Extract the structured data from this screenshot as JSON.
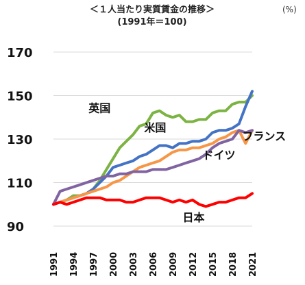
{
  "chart_data": {
    "type": "line",
    "title": "＜１人当たり実質賃金の推移＞",
    "subtitle": "(1991年＝100)",
    "unit": "(%)",
    "ylim": [
      90,
      170
    ],
    "yticks": [
      90,
      110,
      130,
      150,
      170
    ],
    "xlim": [
      1991,
      2021
    ],
    "xticks": [
      1991,
      1994,
      1997,
      2000,
      2003,
      2006,
      2009,
      2012,
      2015,
      2018,
      2021
    ],
    "grid": true,
    "legend": "labels on lines",
    "x": [
      1991,
      1992,
      1993,
      1994,
      1995,
      1996,
      1997,
      1998,
      1999,
      2000,
      2001,
      2002,
      2003,
      2004,
      2005,
      2006,
      2007,
      2008,
      2009,
      2010,
      2011,
      2012,
      2013,
      2014,
      2015,
      2016,
      2017,
      2018,
      2019,
      2020,
      2021
    ],
    "series": [
      {
        "name": "英国",
        "color": "#7cb342",
        "values": [
          100,
          101,
          102,
          104,
          104,
          105,
          107,
          111,
          116,
          121,
          126,
          129,
          132,
          136,
          137,
          142,
          143,
          141,
          140,
          141,
          138,
          138,
          139,
          139,
          142,
          143,
          143,
          146,
          147,
          147,
          150
        ]
      },
      {
        "name": "米国",
        "color": "#4472c4",
        "values": [
          100,
          101,
          102,
          103,
          104,
          105,
          107,
          110,
          113,
          117,
          118,
          119,
          120,
          122,
          123,
          125,
          127,
          127,
          126,
          128,
          128,
          129,
          129,
          130,
          133,
          134,
          134,
          135,
          137,
          145,
          152
        ]
      },
      {
        "name": "フランス",
        "color": "#f79646",
        "values": [
          100,
          101,
          102,
          103,
          104,
          105,
          106,
          107,
          108,
          110,
          111,
          113,
          115,
          117,
          118,
          119,
          120,
          122,
          124,
          125,
          125,
          126,
          126,
          127,
          128,
          130,
          131,
          133,
          134,
          128,
          134
        ]
      },
      {
        "name": "ドイツ",
        "color": "#8064a2",
        "values": [
          100,
          106,
          107,
          108,
          109,
          110,
          111,
          112,
          113,
          113,
          114,
          114,
          115,
          115,
          115,
          116,
          116,
          116,
          117,
          118,
          119,
          120,
          121,
          123,
          126,
          128,
          129,
          130,
          134,
          133,
          134
        ]
      },
      {
        "name": "日本",
        "color": "#ff0000",
        "values": [
          100,
          101,
          100,
          101,
          102,
          103,
          103,
          103,
          102,
          102,
          102,
          101,
          101,
          102,
          103,
          103,
          103,
          102,
          101,
          102,
          101,
          102,
          100,
          99,
          100,
          101,
          101,
          102,
          103,
          103,
          105
        ]
      }
    ]
  }
}
